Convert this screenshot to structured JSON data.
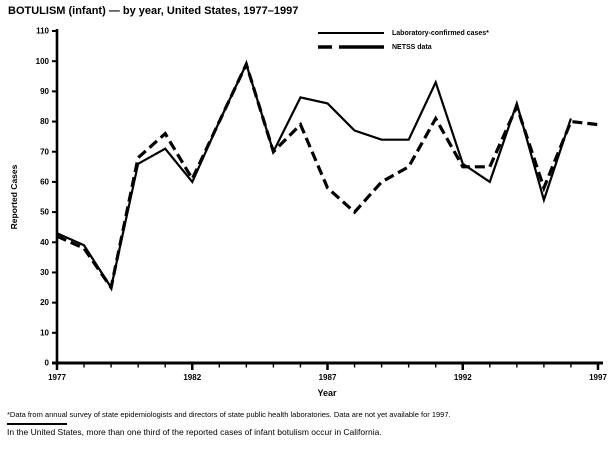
{
  "title": "BOTULISM (infant) — by year, United States, 1977–1997",
  "chart_data": {
    "type": "line",
    "title": "BOTULISM (infant) — by year, United States, 1977–1997",
    "xlabel": "Year",
    "ylabel": "Reported Cases",
    "ylim": [
      0,
      110
    ],
    "ytick_step": 10,
    "xlim": [
      1977,
      1997
    ],
    "xticks_labeled": [
      1977,
      1982,
      1987,
      1992,
      1997
    ],
    "grid": false,
    "line_color": "#000000",
    "legend_position": "top-right",
    "x": [
      1977,
      1978,
      1979,
      1980,
      1981,
      1982,
      1983,
      1984,
      1985,
      1986,
      1987,
      1988,
      1989,
      1990,
      1991,
      1992,
      1993,
      1994,
      1995,
      1996,
      1997
    ],
    "series": [
      {
        "name": "Laboratory-confirmed cases*",
        "style": "solid",
        "values": [
          43,
          39,
          25,
          66,
          71,
          60,
          80,
          99,
          70,
          88,
          86,
          77,
          74,
          74,
          93,
          66,
          60,
          86,
          54,
          81,
          null
        ]
      },
      {
        "name": "NETSS data",
        "style": "dashed",
        "values": [
          42,
          38,
          25,
          68,
          76,
          61,
          80,
          99,
          70,
          79,
          58,
          50,
          60,
          65,
          81,
          65,
          65,
          85,
          58,
          80,
          79
        ]
      }
    ]
  },
  "footnotes": {
    "note1": "*Data from annual survey of state epidemiologists and directors of state public health laboratories. Data are not yet available for 1997.",
    "note2": "In the United States, more than one third of the reported cases of infant botulism occur in California."
  }
}
